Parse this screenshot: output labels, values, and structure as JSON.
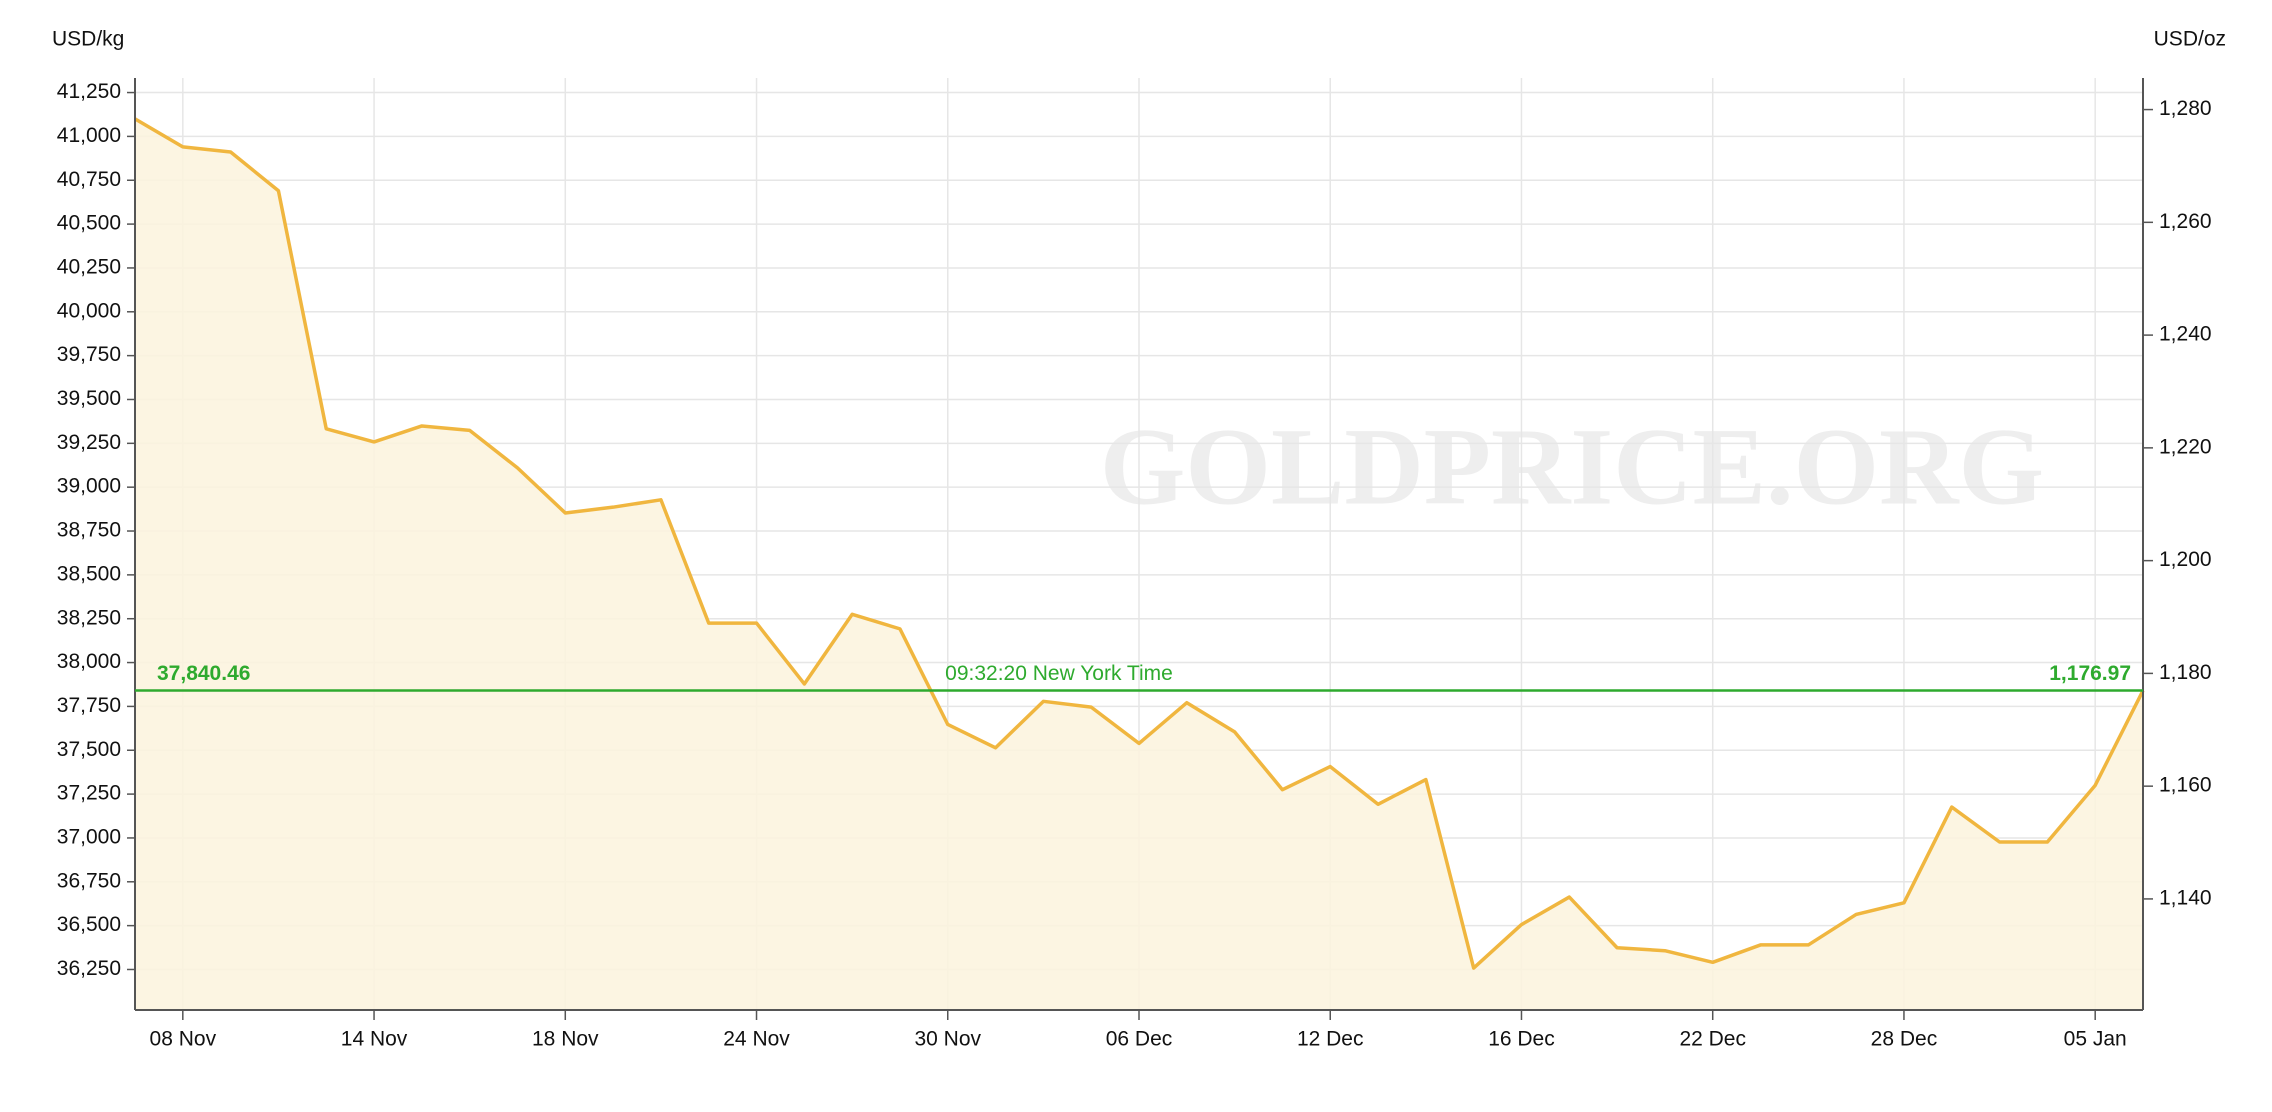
{
  "chart_data": {
    "type": "area",
    "watermark": "GOLDPRICE.ORG",
    "ylabel": "USD/kg",
    "y2label": "USD/oz",
    "categories": [
      null,
      "08 Nov",
      null,
      null,
      null,
      "14 Nov",
      null,
      null,
      null,
      "18 Nov",
      null,
      null,
      null,
      "24 Nov",
      null,
      null,
      null,
      "30 Nov",
      null,
      null,
      null,
      "06 Dec",
      null,
      null,
      null,
      "12 Dec",
      null,
      null,
      null,
      "16 Dec",
      null,
      null,
      null,
      "22 Dec",
      null,
      null,
      null,
      "28 Dec",
      null,
      null,
      null,
      "05 Jan",
      null
    ],
    "series": [
      {
        "name": "Gold",
        "color": "#f0b63f",
        "fill": "#fcf3dd",
        "values": [
          41100,
          40940,
          40911,
          40690,
          39333,
          39258,
          39349,
          39324,
          39110,
          38853,
          38886,
          38928,
          38225,
          38225,
          37878,
          38275,
          38192,
          37647,
          37514,
          37779,
          37746,
          37539,
          37771,
          37605,
          37275,
          37407,
          37192,
          37333,
          36258,
          36506,
          36663,
          36374,
          36357,
          36291,
          36390,
          36390,
          36564,
          36630,
          37176,
          36977,
          36977,
          37300,
          37840.46
        ]
      }
    ],
    "current": {
      "value": 37840.46,
      "value_label": "37,840.46",
      "y2_value": 1176.97,
      "y2_label": "1,176.97",
      "label": "09:32:20 New York Time",
      "color": "#2eaa2e"
    },
    "ylim": [
      36019,
      41333
    ],
    "yticks": [
      {
        "value": 36250,
        "label": "36,250"
      },
      {
        "value": 36500,
        "label": "36,500"
      },
      {
        "value": 36750,
        "label": "36,750"
      },
      {
        "value": 37000,
        "label": "37,000"
      },
      {
        "value": 37250,
        "label": "37,250"
      },
      {
        "value": 37500,
        "label": "37,500"
      },
      {
        "value": 37750,
        "label": "37,750"
      },
      {
        "value": 38000,
        "label": "38,000"
      },
      {
        "value": 38250,
        "label": "38,250"
      },
      {
        "value": 38500,
        "label": "38,500"
      },
      {
        "value": 38750,
        "label": "38,750"
      },
      {
        "value": 39000,
        "label": "39,000"
      },
      {
        "value": 39250,
        "label": "39,250"
      },
      {
        "value": 39500,
        "label": "39,500"
      },
      {
        "value": 39750,
        "label": "39,750"
      },
      {
        "value": 40000,
        "label": "40,000"
      },
      {
        "value": 40250,
        "label": "40,250"
      },
      {
        "value": 40500,
        "label": "40,500"
      },
      {
        "value": 40750,
        "label": "40,750"
      },
      {
        "value": 41000,
        "label": "41,000"
      },
      {
        "value": 41250,
        "label": "41,250"
      }
    ],
    "y2lim": [
      1120.3,
      1285.6
    ],
    "y2ticks": [
      {
        "value": 1140,
        "label": "1,140"
      },
      {
        "value": 1160,
        "label": "1,160"
      },
      {
        "value": 1180,
        "label": "1,180"
      },
      {
        "value": 1200,
        "label": "1,200"
      },
      {
        "value": 1220,
        "label": "1,220"
      },
      {
        "value": 1240,
        "label": "1,240"
      },
      {
        "value": 1260,
        "label": "1,260"
      },
      {
        "value": 1280,
        "label": "1,280"
      }
    ],
    "grid": true
  }
}
